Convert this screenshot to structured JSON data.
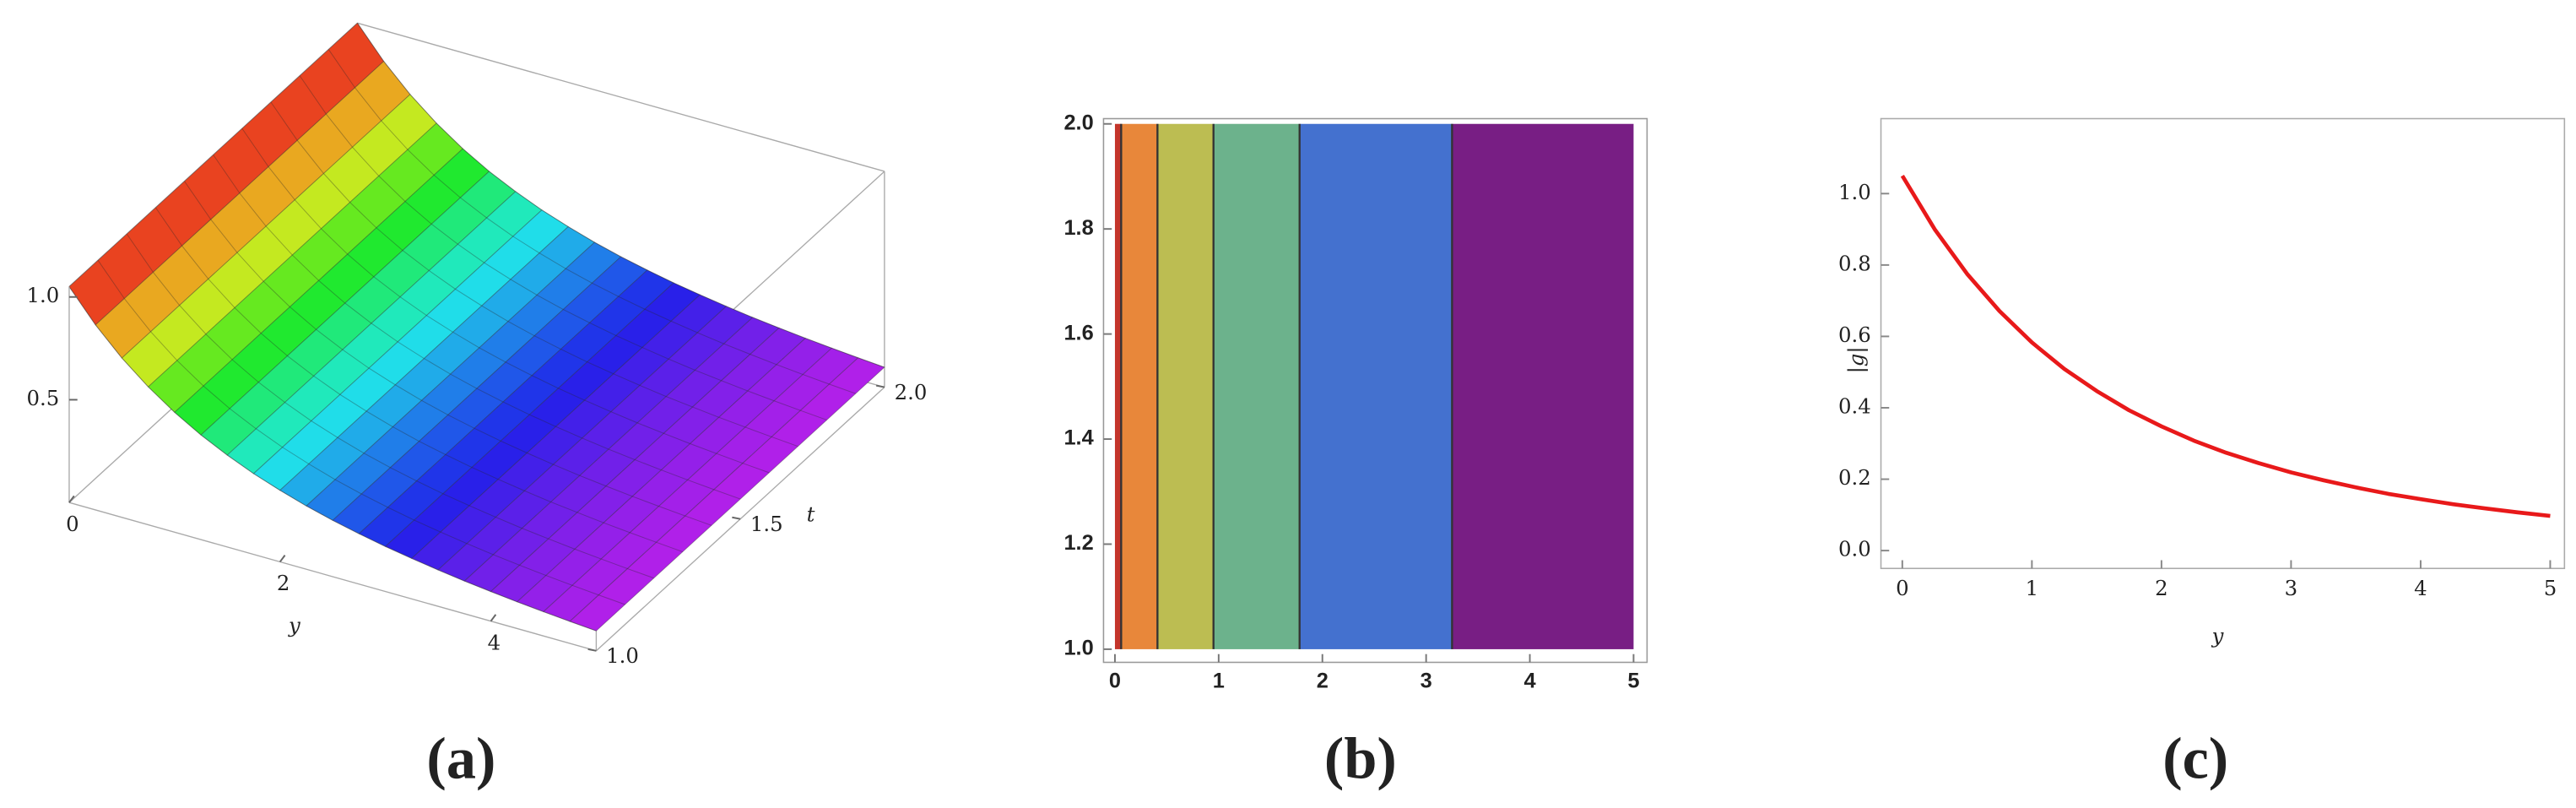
{
  "chart_data": [
    {
      "type": "surface",
      "caption": "(a)",
      "x": [
        0,
        0.25,
        0.5,
        0.75,
        1,
        1.25,
        1.5,
        1.75,
        2,
        2.25,
        2.5,
        2.75,
        3,
        3.25,
        3.5,
        3.75,
        4,
        4.25,
        4.5,
        4.75,
        5
      ],
      "values": [
        1.05,
        0.9,
        0.775,
        0.671,
        0.583,
        0.509,
        0.447,
        0.393,
        0.348,
        0.308,
        0.274,
        0.245,
        0.219,
        0.197,
        0.177,
        0.159,
        0.144,
        0.13,
        0.118,
        0.107,
        0.097
      ],
      "xlim": [
        0,
        5
      ],
      "xticks": [
        0,
        2,
        4
      ],
      "xlabel": "y",
      "ylim": [
        1,
        2
      ],
      "yticks": [
        {
          "value": 1,
          "label": "1.0"
        },
        1.5,
        {
          "value": 2,
          "label": "2.0"
        }
      ],
      "ylabel": "t",
      "zlim": [
        0,
        1.05
      ],
      "zticks": [
        0.5,
        {
          "value": 1,
          "label": "1.0"
        }
      ],
      "colormap": "rainbow"
    },
    {
      "type": "contour",
      "caption": "(b)",
      "bins": [
        0,
        0.06,
        0.41,
        0.95,
        1.78,
        3.25,
        5
      ],
      "colors": [
        "#c4352b",
        "#e8873a",
        "#bcbd52",
        "#6cb28c",
        "#4471cf",
        "#781e84"
      ],
      "y_range": [
        1,
        2
      ],
      "xlim": [
        -0.11,
        5.13
      ],
      "xticks": [
        0,
        1,
        2,
        3,
        4,
        5
      ],
      "ylim": [
        0.975,
        2.01
      ],
      "yticks": [
        {
          "value": 1,
          "label": "1.0"
        },
        1.2,
        1.4,
        1.6,
        1.8,
        {
          "value": 2,
          "label": "2.0"
        }
      ]
    },
    {
      "type": "line",
      "caption": "(c)",
      "x": [
        0,
        0.25,
        0.5,
        0.75,
        1,
        1.25,
        1.5,
        1.75,
        2,
        2.25,
        2.5,
        2.75,
        3,
        3.25,
        3.5,
        3.75,
        4,
        4.25,
        4.5,
        4.75,
        5
      ],
      "values": [
        1.05,
        0.9,
        0.775,
        0.671,
        0.583,
        0.509,
        0.447,
        0.393,
        0.348,
        0.308,
        0.274,
        0.245,
        0.219,
        0.197,
        0.177,
        0.159,
        0.144,
        0.13,
        0.118,
        0.107,
        0.097
      ],
      "color": "#e8191a",
      "xlim": [
        -0.165,
        5.11
      ],
      "xticks": [
        0,
        1,
        2,
        3,
        4,
        5
      ],
      "xlabel": "y",
      "ylim": [
        -0.05,
        1.21
      ],
      "yticks": [
        {
          "value": 0,
          "label": "0.0"
        },
        0.2,
        0.4,
        0.6,
        0.8,
        {
          "value": 1,
          "label": "1.0"
        }
      ],
      "ylabel": "|g|"
    }
  ]
}
